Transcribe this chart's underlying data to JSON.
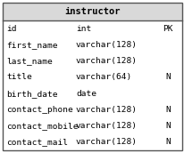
{
  "title": "instructor",
  "rows": [
    {
      "field": "id",
      "type": "int",
      "constraint": "PK"
    },
    {
      "field": "first_name",
      "type": "varchar(128)",
      "constraint": ""
    },
    {
      "field": "last_name",
      "type": "varchar(128)",
      "constraint": ""
    },
    {
      "field": "title",
      "type": "varchar(64)",
      "constraint": "N"
    },
    {
      "field": "birth_date",
      "type": "date",
      "constraint": ""
    },
    {
      "field": "contact_phone",
      "type": "varchar(128)",
      "constraint": "N"
    },
    {
      "field": "contact_mobile",
      "type": "varchar(128)",
      "constraint": "N"
    },
    {
      "field": "contact_mail",
      "type": "varchar(128)",
      "constraint": "N"
    }
  ],
  "header_bg": "#d9d9d9",
  "body_bg": "#ffffff",
  "border_color": "#555555",
  "header_fontsize": 7.5,
  "body_fontsize": 6.8,
  "title_fontweight": "bold",
  "fig_width": 2.07,
  "fig_height": 1.72,
  "dpi": 100
}
